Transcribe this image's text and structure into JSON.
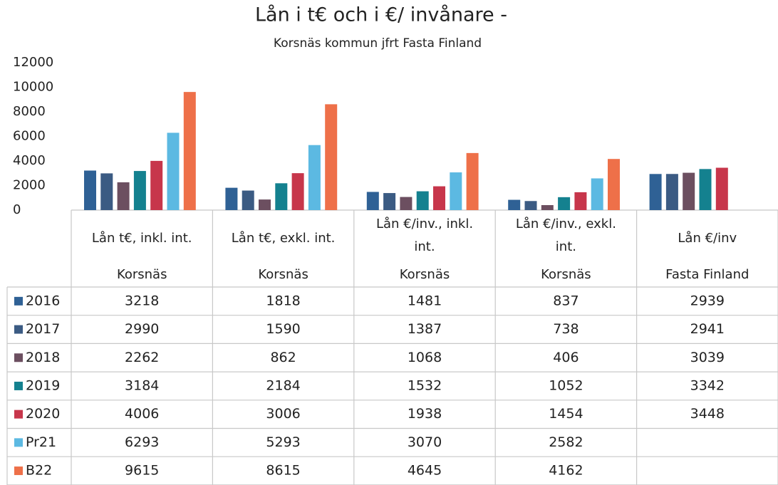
{
  "chart_data": {
    "type": "bar",
    "title": "Lån i t€ och i €/ invånare -",
    "subtitle": "Korsnäs kommun jfrt Fasta Finland",
    "categories": [
      [
        "Lån t€, inkl. int.",
        "Korsnäs"
      ],
      [
        "Lån t€, exkl. int.",
        "Korsnäs"
      ],
      [
        "Lån €/inv., inkl.",
        "int.",
        "Korsnäs"
      ],
      [
        "Lån €/inv., exkl.",
        "int.",
        "Korsnäs"
      ],
      [
        "Lån €/inv",
        "Fasta Finland"
      ]
    ],
    "series": [
      {
        "name": "2016",
        "color": "#2f6195",
        "values": [
          3218,
          1818,
          1481,
          837,
          2939
        ]
      },
      {
        "name": "2017",
        "color": "#3b5b83",
        "values": [
          2990,
          1590,
          1387,
          738,
          2941
        ]
      },
      {
        "name": "2018",
        "color": "#6c4f60",
        "values": [
          2262,
          862,
          1068,
          406,
          3039
        ]
      },
      {
        "name": "2019",
        "color": "#14818f",
        "values": [
          3184,
          2184,
          1532,
          1052,
          3342
        ]
      },
      {
        "name": "2020",
        "color": "#c7364b",
        "values": [
          4006,
          3006,
          1938,
          1454,
          3448
        ]
      },
      {
        "name": "Pr21",
        "color": "#5cb9e2",
        "values": [
          6293,
          5293,
          3070,
          2582,
          null
        ]
      },
      {
        "name": "B22",
        "color": "#ee7049",
        "values": [
          9615,
          8615,
          4645,
          4162,
          null
        ]
      }
    ],
    "ylim": [
      0,
      12000
    ],
    "yticks": [
      0,
      2000,
      4000,
      6000,
      8000,
      10000,
      12000
    ],
    "grid": false
  }
}
